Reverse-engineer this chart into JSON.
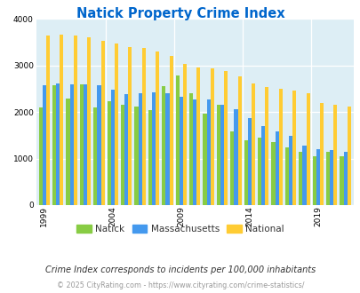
{
  "title": "Natick Property Crime Index",
  "title_color": "#0066cc",
  "subtitle": "Crime Index corresponds to incidents per 100,000 inhabitants",
  "footer": "© 2025 CityRating.com - https://www.cityrating.com/crime-statistics/",
  "years": [
    1999,
    2000,
    2001,
    2002,
    2003,
    2004,
    2005,
    2006,
    2007,
    2008,
    2009,
    2010,
    2011,
    2012,
    2013,
    2014,
    2015,
    2016,
    2017,
    2018,
    2019,
    2020,
    2021
  ],
  "natick": [
    2100,
    2580,
    2300,
    2590,
    2100,
    2230,
    2150,
    2110,
    2050,
    2560,
    2790,
    2410,
    1960,
    2160,
    1590,
    1390,
    1450,
    1350,
    1240,
    1140,
    1050,
    1140,
    1050
  ],
  "massachusetts": [
    2570,
    2620,
    2600,
    2600,
    2580,
    2490,
    2390,
    2400,
    2420,
    2400,
    2330,
    2270,
    2270,
    2160,
    2060,
    1880,
    1700,
    1580,
    1480,
    1280,
    1200,
    1180,
    1150
  ],
  "national": [
    3640,
    3660,
    3650,
    3600,
    3530,
    3470,
    3400,
    3380,
    3300,
    3200,
    3040,
    2960,
    2940,
    2890,
    2760,
    2620,
    2540,
    2500,
    2460,
    2410,
    2200,
    2160,
    2120
  ],
  "natick_color": "#88cc44",
  "mass_color": "#4499ee",
  "national_color": "#ffcc33",
  "bg_color": "#ddeef5",
  "ylim": [
    0,
    4000
  ],
  "yticks": [
    0,
    1000,
    2000,
    3000,
    4000
  ],
  "xtick_years": [
    1999,
    2004,
    2009,
    2014,
    2019
  ],
  "bar_width": 0.27
}
